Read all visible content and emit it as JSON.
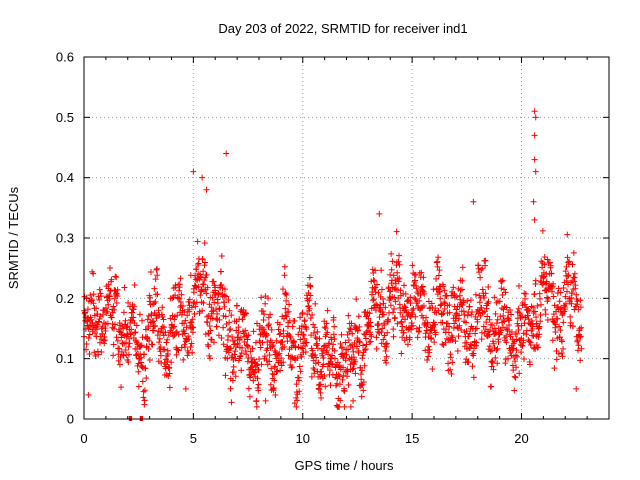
{
  "chart_data": {
    "type": "scatter",
    "title": "Day 203 of 2022, SRMTID for receiver ind1",
    "xlabel": "GPS time / hours",
    "ylabel": "SRMTID / TECUs",
    "xlim": [
      0,
      24
    ],
    "ylim": [
      0,
      0.6
    ],
    "x_ticks": [
      "0",
      "5",
      "10",
      "15",
      "20"
    ],
    "y_ticks": [
      "0",
      "0.1",
      "0.2",
      "0.3",
      "0.4",
      "0.5",
      "0.6"
    ],
    "grid": true,
    "marker": "+",
    "series": [
      {
        "name": "SRMTID",
        "color": "#ff0000",
        "x": [
          0.0,
          0.25,
          0.5,
          0.75,
          1.0,
          1.25,
          1.5,
          1.75,
          2.0,
          2.25,
          2.5,
          2.75,
          3.0,
          3.25,
          3.5,
          3.75,
          4.0,
          4.25,
          4.5,
          4.75,
          5.0,
          5.25,
          5.5,
          5.75,
          6.0,
          6.25,
          6.5,
          6.75,
          7.0,
          7.25,
          7.5,
          7.75,
          8.0,
          8.25,
          8.5,
          8.75,
          9.0,
          9.25,
          9.5,
          9.75,
          10.0,
          10.25,
          10.5,
          10.75,
          11.0,
          11.25,
          11.5,
          11.75,
          12.0,
          12.25,
          12.5,
          12.75,
          13.0,
          13.25,
          13.5,
          13.75,
          14.0,
          14.25,
          14.5,
          14.75,
          15.0,
          15.25,
          15.5,
          15.75,
          16.0,
          16.25,
          16.5,
          16.75,
          17.0,
          17.25,
          17.5,
          17.75,
          18.0,
          18.25,
          18.5,
          18.75,
          19.0,
          19.25,
          19.5,
          19.75,
          20.0,
          20.25,
          20.5,
          20.75,
          21.0,
          21.25,
          21.5,
          21.75,
          22.0,
          22.25,
          22.5,
          22.75
        ],
        "y_mean": [
          0.15,
          0.14,
          0.17,
          0.19,
          0.18,
          0.16,
          0.17,
          0.15,
          0.14,
          0.13,
          0.12,
          0.13,
          0.14,
          0.15,
          0.16,
          0.15,
          0.14,
          0.15,
          0.16,
          0.17,
          0.18,
          0.21,
          0.22,
          0.19,
          0.17,
          0.16,
          0.15,
          0.14,
          0.13,
          0.12,
          0.11,
          0.1,
          0.11,
          0.12,
          0.13,
          0.12,
          0.13,
          0.14,
          0.13,
          0.12,
          0.13,
          0.14,
          0.13,
          0.12,
          0.1,
          0.09,
          0.1,
          0.11,
          0.1,
          0.09,
          0.11,
          0.13,
          0.15,
          0.16,
          0.17,
          0.18,
          0.19,
          0.2,
          0.2,
          0.19,
          0.18,
          0.19,
          0.18,
          0.17,
          0.16,
          0.17,
          0.18,
          0.17,
          0.16,
          0.15,
          0.16,
          0.17,
          0.18,
          0.17,
          0.16,
          0.15,
          0.16,
          0.15,
          0.14,
          0.15,
          0.14,
          0.13,
          0.16,
          0.2,
          0.21,
          0.2,
          0.19,
          0.18,
          0.19,
          0.2,
          0.19,
          0.18
        ],
        "spread": 0.06,
        "outliers": [
          {
            "x": 5.0,
            "y": 0.41
          },
          {
            "x": 5.4,
            "y": 0.4
          },
          {
            "x": 5.6,
            "y": 0.38
          },
          {
            "x": 6.5,
            "y": 0.44
          },
          {
            "x": 13.5,
            "y": 0.34
          },
          {
            "x": 17.8,
            "y": 0.36
          },
          {
            "x": 20.6,
            "y": 0.51
          },
          {
            "x": 20.65,
            "y": 0.5
          },
          {
            "x": 20.6,
            "y": 0.47
          },
          {
            "x": 20.6,
            "y": 0.43
          },
          {
            "x": 20.65,
            "y": 0.41
          },
          {
            "x": 20.55,
            "y": 0.36
          },
          {
            "x": 20.6,
            "y": 0.33
          },
          {
            "x": 0.2,
            "y": 0.04
          },
          {
            "x": 12.2,
            "y": 0.02
          },
          {
            "x": 12.3,
            "y": 0.03
          },
          {
            "x": 7.9,
            "y": 0.02
          },
          {
            "x": 8.3,
            "y": 0.03
          },
          {
            "x": 22.5,
            "y": 0.05
          }
        ]
      }
    ],
    "gap_markers": [
      {
        "x_start": 2.05,
        "x_end": 2.2
      },
      {
        "x_start": 2.55,
        "x_end": 2.7
      }
    ]
  }
}
